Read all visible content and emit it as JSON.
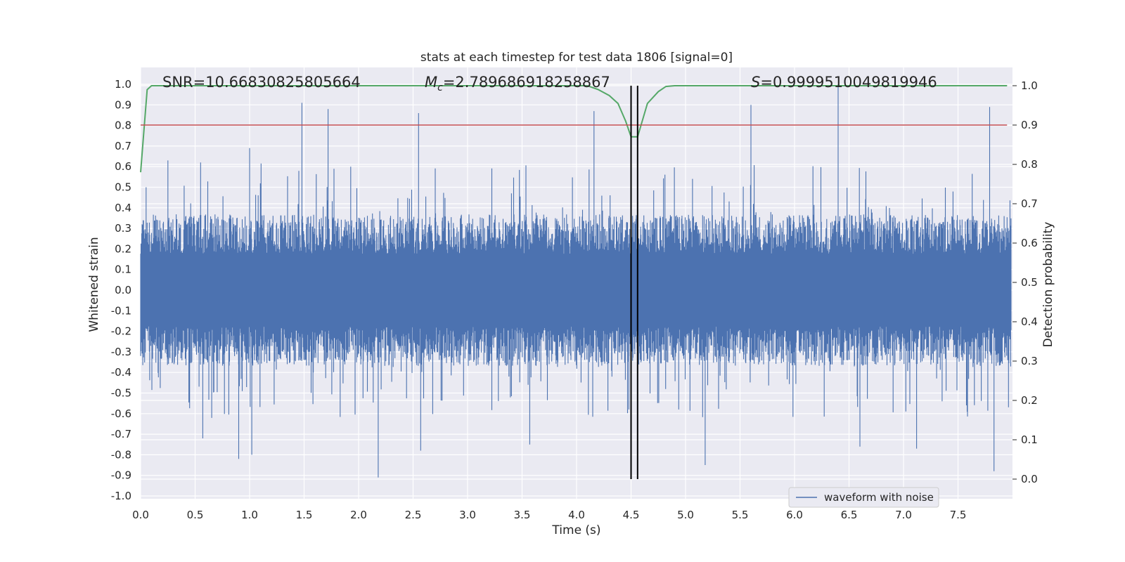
{
  "chart_data": {
    "type": "line",
    "title": "stats at each timestep for test data 1806 [signal=0]",
    "xlabel": "Time (s)",
    "ylabel": "Whitened strain",
    "y2label": "Detection probability",
    "xlim": [
      0.0,
      8.0
    ],
    "ylim": [
      -1.0,
      1.0
    ],
    "y2lim": [
      -0.046,
      1.046
    ],
    "x_ticks": [
      "0.0",
      "0.5",
      "1.0",
      "1.5",
      "2.0",
      "2.5",
      "3.0",
      "3.5",
      "4.0",
      "4.5",
      "5.0",
      "5.5",
      "6.0",
      "6.5",
      "7.0",
      "7.5"
    ],
    "y_ticks": [
      "1.0",
      "0.9",
      "0.8",
      "0.7",
      "0.6",
      "0.5",
      "0.4",
      "0.3",
      "0.2",
      "0.1",
      "0.0",
      "-0.1",
      "-0.2",
      "-0.3",
      "-0.4",
      "-0.5",
      "-0.6",
      "-0.7",
      "-0.8",
      "-0.9",
      "-1.0"
    ],
    "y2_ticks": [
      "1.0",
      "0.9",
      "0.8",
      "0.7",
      "0.6",
      "0.5",
      "0.4",
      "0.3",
      "0.2",
      "0.1",
      "0.0"
    ],
    "grid": true,
    "legend_position": "bottom-right",
    "annotations": {
      "snr": "SNR=10.66830825805664",
      "mc_symbol": "M",
      "mc_sub": "c",
      "mc_value": "=2.789686918258867",
      "s_symbol": "S",
      "s_value": "=0.9999510049819946"
    },
    "series": [
      {
        "name": "waveform with noise",
        "axis": "left",
        "color": "#4c72b0",
        "style": "dense noise",
        "typical_envelope": [
          -0.32,
          0.32
        ],
        "peaks": [
          {
            "x": 0.05,
            "y": 0.5
          },
          {
            "x": 0.25,
            "y": 0.63
          },
          {
            "x": 0.55,
            "y": 0.62
          },
          {
            "x": 0.57,
            "y": -0.72
          },
          {
            "x": 0.9,
            "y": -0.82
          },
          {
            "x": 1.0,
            "y": 0.69
          },
          {
            "x": 1.02,
            "y": -0.8
          },
          {
            "x": 1.48,
            "y": 0.91
          },
          {
            "x": 1.72,
            "y": 0.88
          },
          {
            "x": 2.18,
            "y": -0.91
          },
          {
            "x": 2.57,
            "y": -0.78
          },
          {
            "x": 2.55,
            "y": 0.86
          },
          {
            "x": 3.57,
            "y": -0.75
          },
          {
            "x": 4.16,
            "y": 0.87
          },
          {
            "x": 4.48,
            "y": -0.58
          },
          {
            "x": 5.18,
            "y": -0.85
          },
          {
            "x": 5.6,
            "y": 0.9
          },
          {
            "x": 6.4,
            "y": 1.0
          },
          {
            "x": 6.6,
            "y": -0.76
          },
          {
            "x": 7.12,
            "y": -0.77
          },
          {
            "x": 7.79,
            "y": 0.89
          },
          {
            "x": 7.83,
            "y": -0.88
          }
        ]
      },
      {
        "name": "",
        "axis": "right",
        "color": "#55a868",
        "x": [
          0.0,
          0.06,
          0.1,
          0.2,
          4.0,
          4.1,
          4.2,
          4.3,
          4.38,
          4.45,
          4.5,
          4.56,
          4.65,
          4.75,
          4.82,
          4.9,
          7.95
        ],
        "values": [
          0.78,
          0.99,
          1.0,
          1.0,
          1.0,
          1.0,
          0.99,
          0.975,
          0.955,
          0.91,
          0.87,
          0.87,
          0.955,
          0.985,
          0.998,
          1.0,
          1.0
        ]
      },
      {
        "name": "",
        "axis": "right",
        "color": "#c44e52",
        "style": "horizontal threshold",
        "x": [
          0.0,
          7.95
        ],
        "values": [
          0.9,
          0.9
        ]
      }
    ],
    "vertical_markers": {
      "color": "#000000",
      "x": [
        4.5,
        4.56
      ],
      "y2_span": [
        0.0,
        1.0
      ]
    },
    "colors": {
      "plot_background": "#eaeaf2",
      "grid": "#ffffff"
    }
  }
}
